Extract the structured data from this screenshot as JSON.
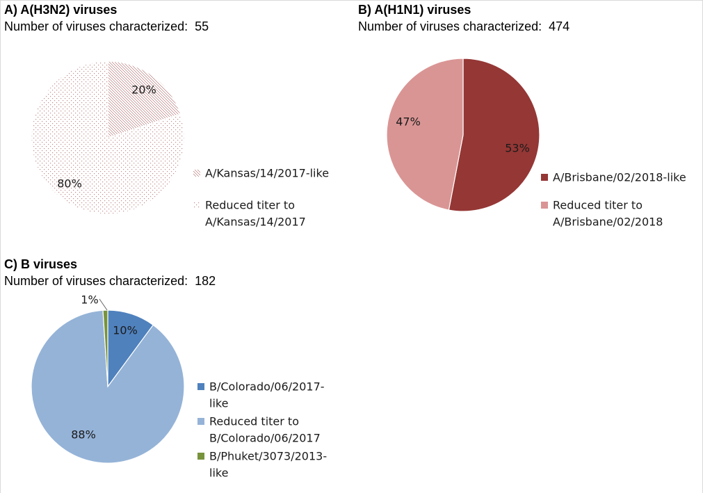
{
  "chart_data": [
    {
      "type": "pie",
      "id": "h3n2",
      "title": "A) A(H3N2) viruses",
      "subtitle": "Number of viruses characterized:",
      "count": "55",
      "slices": [
        {
          "name": "A/Kansas/14/2017-like",
          "legend_lines": [
            "A/Kansas/14/2017-like"
          ],
          "value": 20,
          "label": "20%",
          "color": "#c28a8a",
          "pattern": "crosshatch"
        },
        {
          "name": "Reduced titer to A/Kansas/14/2017",
          "legend_lines": [
            "Reduced titer to",
            "A/Kansas/14/2017"
          ],
          "value": 80,
          "label": "80%",
          "color": "#d9a3a3",
          "pattern": "dots"
        }
      ],
      "legend_position": "right"
    },
    {
      "type": "pie",
      "id": "h1n1",
      "title": "B) A(H1N1) viruses",
      "subtitle": "Number of viruses characterized:",
      "count": "474",
      "slices": [
        {
          "name": "A/Brisbane/02/2018-like",
          "legend_lines": [
            "A/Brisbane/02/2018-like"
          ],
          "value": 53,
          "label": "53%",
          "color": "#953735",
          "pattern": "solid"
        },
        {
          "name": "Reduced titer to A/Brisbane/02/2018",
          "legend_lines": [
            "Reduced titer to",
            "A/Brisbane/02/2018"
          ],
          "value": 47,
          "label": "47%",
          "color": "#d99594",
          "pattern": "solid"
        }
      ],
      "legend_position": "right"
    },
    {
      "type": "pie",
      "id": "b",
      "title": "C) B viruses",
      "subtitle": "Number of viruses characterized:",
      "count": "182",
      "slices": [
        {
          "name": "B/Colorado/06/2017-like",
          "legend_lines": [
            "B/Colorado/06/2017-",
            "like"
          ],
          "value": 10,
          "label": "10%",
          "color": "#4f81bd",
          "pattern": "solid"
        },
        {
          "name": "Reduced titer to B/Colorado/06/2017",
          "legend_lines": [
            "Reduced titer to",
            "B/Colorado/06/2017"
          ],
          "value": 88,
          "label": "88%",
          "color": "#95b3d7",
          "pattern": "solid"
        },
        {
          "name": "B/Phuket/3073/2013-like",
          "legend_lines": [
            "B/Phuket/3073/2013-",
            "like"
          ],
          "value": 1,
          "label": "1%",
          "color": "#77933c",
          "pattern": "solid"
        }
      ],
      "legend_position": "right"
    }
  ]
}
